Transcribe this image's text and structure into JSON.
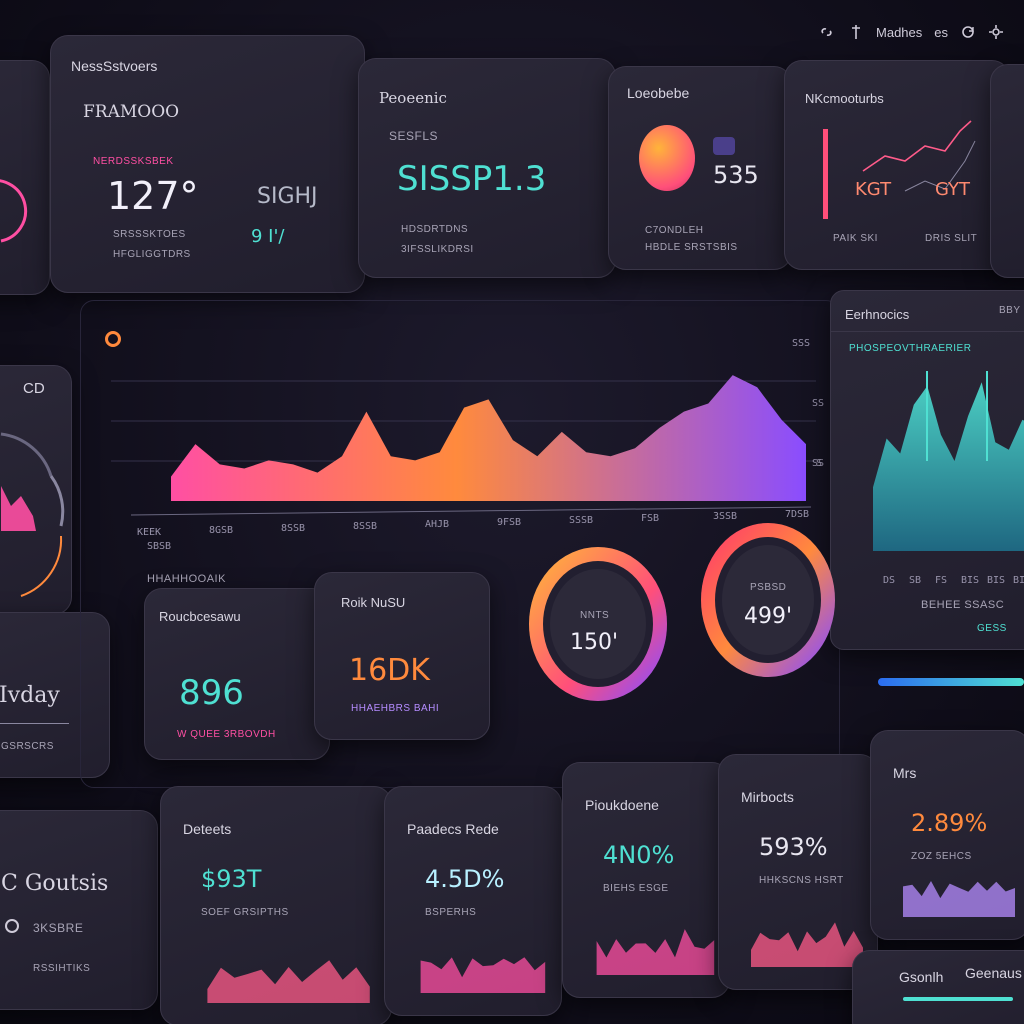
{
  "topbar": {
    "label_left": "Madhes",
    "label_right": "es"
  },
  "cards_top": [
    {
      "title": "NessSstvoers",
      "subtitle": "FRAMOOO",
      "badge": "NERDSSKSBEK",
      "value": "127°",
      "side_value": "SIGHJ",
      "side_value2": "9 I'/",
      "row1": "SRSSSKTOES",
      "row2": "HFGLIGGTDRS"
    },
    {
      "title": "Peoeenic",
      "small": "SESFLS",
      "value": "SISSP1.3",
      "row1": "HDSDRTDNS",
      "row2": "3IFSSLIKDRSI"
    },
    {
      "title": "Loeobebe",
      "value": "535",
      "row1": "C7ONDLEH",
      "row2": "HBDLE SRSTSBIS"
    },
    {
      "title": "NKcmooturbs",
      "left_val": "KGT",
      "right_val": "GYT",
      "row1": "PAIK SKI",
      "row2": "DRIS SLIT"
    }
  ],
  "main_chart": {
    "x_ticks": [
      "KEEK",
      "8GSB",
      "8SSB",
      "8SSB",
      "AHJB",
      "9FSB",
      "SSSB",
      "FSB",
      "3SSB",
      "7DSB"
    ],
    "x_first_sub": "SBSB",
    "y_ticks": [
      "SSS",
      "SS",
      "SS",
      "S"
    ],
    "legend_label": "HHAHHOOAIK",
    "values": [
      12,
      28,
      18,
      16,
      20,
      18,
      14,
      22,
      44,
      22,
      20,
      24,
      46,
      50,
      30,
      22,
      34,
      24,
      22,
      26,
      36,
      44,
      48,
      62,
      56,
      40,
      28
    ]
  },
  "right_chart": {
    "title": "Eerhnocics",
    "tag": "BBY",
    "sub": "PHOSPEOVTHRAERIER",
    "x_ticks": [
      "DS",
      "SB",
      "FS",
      "BIS",
      "BIS",
      "BIS"
    ],
    "footer": "BEHEE SSASC",
    "footer_link": "GESS",
    "values": [
      34,
      60,
      52,
      78,
      88,
      62,
      48,
      72,
      90,
      58,
      54,
      70,
      66
    ]
  },
  "mid_cards": [
    {
      "title": "Roucbcesawu",
      "value": "896",
      "caption": "W QUEE 3RBOVDH"
    },
    {
      "title": "Roik NuSU",
      "value": "16DK",
      "caption": "HHAEHBRS BAHI"
    }
  ],
  "donuts": [
    {
      "label": "NNTS",
      "value": "150'",
      "pct": 0.72
    },
    {
      "label": "PSBSD",
      "value": "499'",
      "pct": 0.86
    }
  ],
  "left_edge": {
    "label1": "CD",
    "label2": "Ivday",
    "label3": "GSRSCRS"
  },
  "bottom_cards": [
    {
      "title": "Deteets",
      "value": "$93T",
      "row1": "SOEF GRSIPTHS"
    },
    {
      "title": "Paadecs Rede",
      "value": "4.5D%",
      "row1": "BSPERHS"
    },
    {
      "title": "Pioukdoene",
      "value": "4N0%",
      "row1": "BIEHS ESGE"
    },
    {
      "title": "Mirbocts",
      "value": "593%",
      "row1": "HHKSCNS HSRT"
    },
    {
      "title": "Mrs",
      "value": "2.89%",
      "row1": "ZOZ 5EHCS"
    }
  ],
  "left_bottom": {
    "title": "C Goutsis",
    "row1": "3KSBRE",
    "row2": "RSSIHTIKS"
  },
  "footer_card": {
    "left": "Gsonlh",
    "right": "Geenaus"
  },
  "colors": {
    "cyan": "#4fe0d2",
    "pink": "#ff4fa3",
    "orange": "#ff8a3d",
    "purple": "#8a4dff"
  }
}
